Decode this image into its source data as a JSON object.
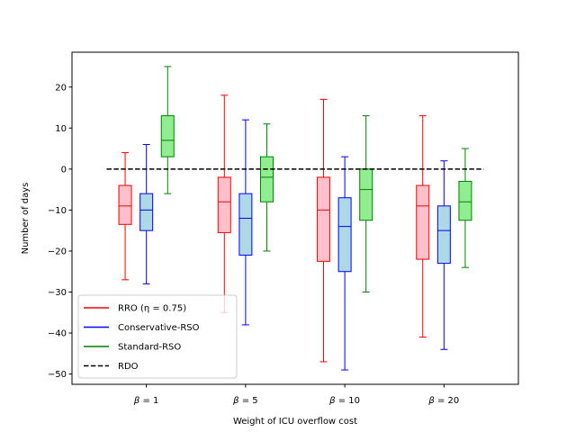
{
  "chart_data": {
    "type": "box",
    "xlabel": "Weight of ICU overflow cost",
    "ylabel": "Number of days",
    "ylim": [
      -52.5,
      28.5
    ],
    "yticks": [
      20,
      10,
      0,
      -10,
      -20,
      -30,
      -40,
      -50
    ],
    "categories": [
      "β = 1",
      "β = 5",
      "β = 10",
      "β = 20"
    ],
    "reference_line": {
      "name": "RDO",
      "value": 0,
      "style": "dashed",
      "color": "#000000"
    },
    "series": [
      {
        "name": "RRO (η = 0.75)",
        "edge_color": "#ff0000",
        "fill_color": "#ffc0cb",
        "boxes": [
          {
            "whislo": -27,
            "q1": -13.5,
            "med": -9,
            "q3": -4,
            "whishi": 4
          },
          {
            "whislo": -35,
            "q1": -15.5,
            "med": -8,
            "q3": -2,
            "whishi": 18
          },
          {
            "whislo": -47,
            "q1": -22.5,
            "med": -10,
            "q3": -2,
            "whishi": 17
          },
          {
            "whislo": -41,
            "q1": -22,
            "med": -9,
            "q3": -4,
            "whishi": 13
          }
        ]
      },
      {
        "name": "Conservative-RSO",
        "edge_color": "#0000ff",
        "fill_color": "#add8e6",
        "boxes": [
          {
            "whislo": -28,
            "q1": -15,
            "med": -10,
            "q3": -6,
            "whishi": 6
          },
          {
            "whislo": -38,
            "q1": -21,
            "med": -12,
            "q3": -6,
            "whishi": 12
          },
          {
            "whislo": -49,
            "q1": -25,
            "med": -14,
            "q3": -7,
            "whishi": 3
          },
          {
            "whislo": -44,
            "q1": -23,
            "med": -15,
            "q3": -9,
            "whishi": 2
          }
        ]
      },
      {
        "name": "Standard-RSO",
        "edge_color": "#008000",
        "fill_color": "#90ee90",
        "boxes": [
          {
            "whislo": -6,
            "q1": 3,
            "med": 7,
            "q3": 13,
            "whishi": 25
          },
          {
            "whislo": -20,
            "q1": -8,
            "med": -2,
            "q3": 3,
            "whishi": 11
          },
          {
            "whislo": -30,
            "q1": -12.5,
            "med": -5,
            "q3": 0,
            "whishi": 13
          },
          {
            "whislo": -24,
            "q1": -12.5,
            "med": -8,
            "q3": -3,
            "whishi": 5
          }
        ]
      }
    ],
    "legend": {
      "position": "lower-left",
      "entries": [
        {
          "label": "RRO (η = 0.75)",
          "color": "#ff0000",
          "style": "solid"
        },
        {
          "label": "Conservative-RSO",
          "color": "#0000ff",
          "style": "solid"
        },
        {
          "label": "Standard-RSO",
          "color": "#008000",
          "style": "solid"
        },
        {
          "label": "RDO",
          "color": "#000000",
          "style": "dashed"
        }
      ]
    },
    "grid": false
  }
}
